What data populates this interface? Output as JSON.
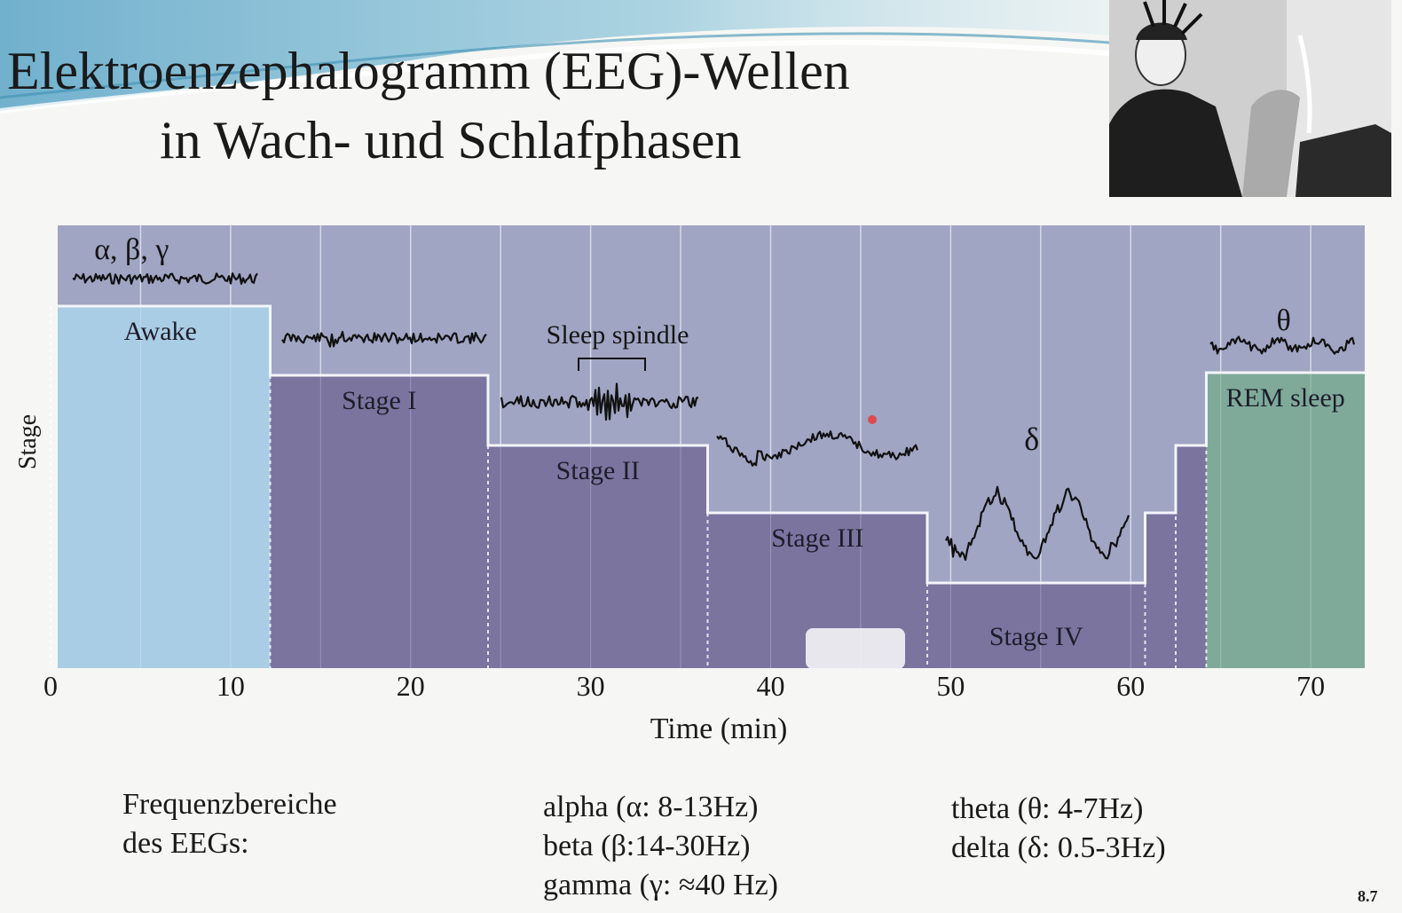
{
  "slide": {
    "title_line1": "Elektroenzephalogramm (EEG)-Wellen",
    "title_line2": "in Wach- und Schlafphasen",
    "page_number": "8.7"
  },
  "colors": {
    "awake": "#a9cde4",
    "sleep_stage": "#7b749f",
    "rem": "#7faa9a",
    "plot_background": "#a0a5c3",
    "frame": "#eef3f8"
  },
  "chart_data": {
    "type": "area",
    "xlabel": "Time (min)",
    "ylabel": "Stage",
    "xlim": [
      0,
      73
    ],
    "xticks": [
      0,
      10,
      20,
      30,
      40,
      50,
      60,
      70
    ],
    "levels": [
      "Awake",
      "REM sleep",
      "Stage I",
      "Stage II",
      "Stage III",
      "Stage IV"
    ],
    "hypnogram": [
      {
        "start": 0,
        "end": 12.2,
        "stage": "Awake",
        "label": "Awake"
      },
      {
        "start": 12.2,
        "end": 24.3,
        "stage": "Stage I",
        "label": "Stage I"
      },
      {
        "start": 24.3,
        "end": 36.5,
        "stage": "Stage II",
        "label": "Stage II"
      },
      {
        "start": 36.5,
        "end": 48.7,
        "stage": "Stage III",
        "label": "Stage III"
      },
      {
        "start": 48.7,
        "end": 60.8,
        "stage": "Stage IV",
        "label": "Stage IV"
      },
      {
        "start": 60.8,
        "end": 62.5,
        "stage": "Stage III",
        "label": ""
      },
      {
        "start": 62.5,
        "end": 64.2,
        "stage": "Stage II",
        "label": ""
      },
      {
        "start": 64.2,
        "end": 73,
        "stage": "REM sleep",
        "label": "REM sleep"
      }
    ],
    "wave_annotations": [
      {
        "text": "α, β, γ",
        "at": 4.5
      },
      {
        "text": "Sleep spindle",
        "at": 31.5
      },
      {
        "text": "δ",
        "at": 54.5
      },
      {
        "text": "θ",
        "at": 68.5
      }
    ],
    "grid": true
  },
  "frequency_bands": {
    "label_line1": "Frequenzbereiche",
    "label_line2": "des EEGs:",
    "alpha": "alpha (α: 8-13Hz)",
    "beta": "beta (β:14-30Hz)",
    "gamma": "gamma (γ: ≈40 Hz)",
    "theta": "theta (θ: 4-7Hz)",
    "delta": "delta (δ: 0.5-3Hz)"
  }
}
